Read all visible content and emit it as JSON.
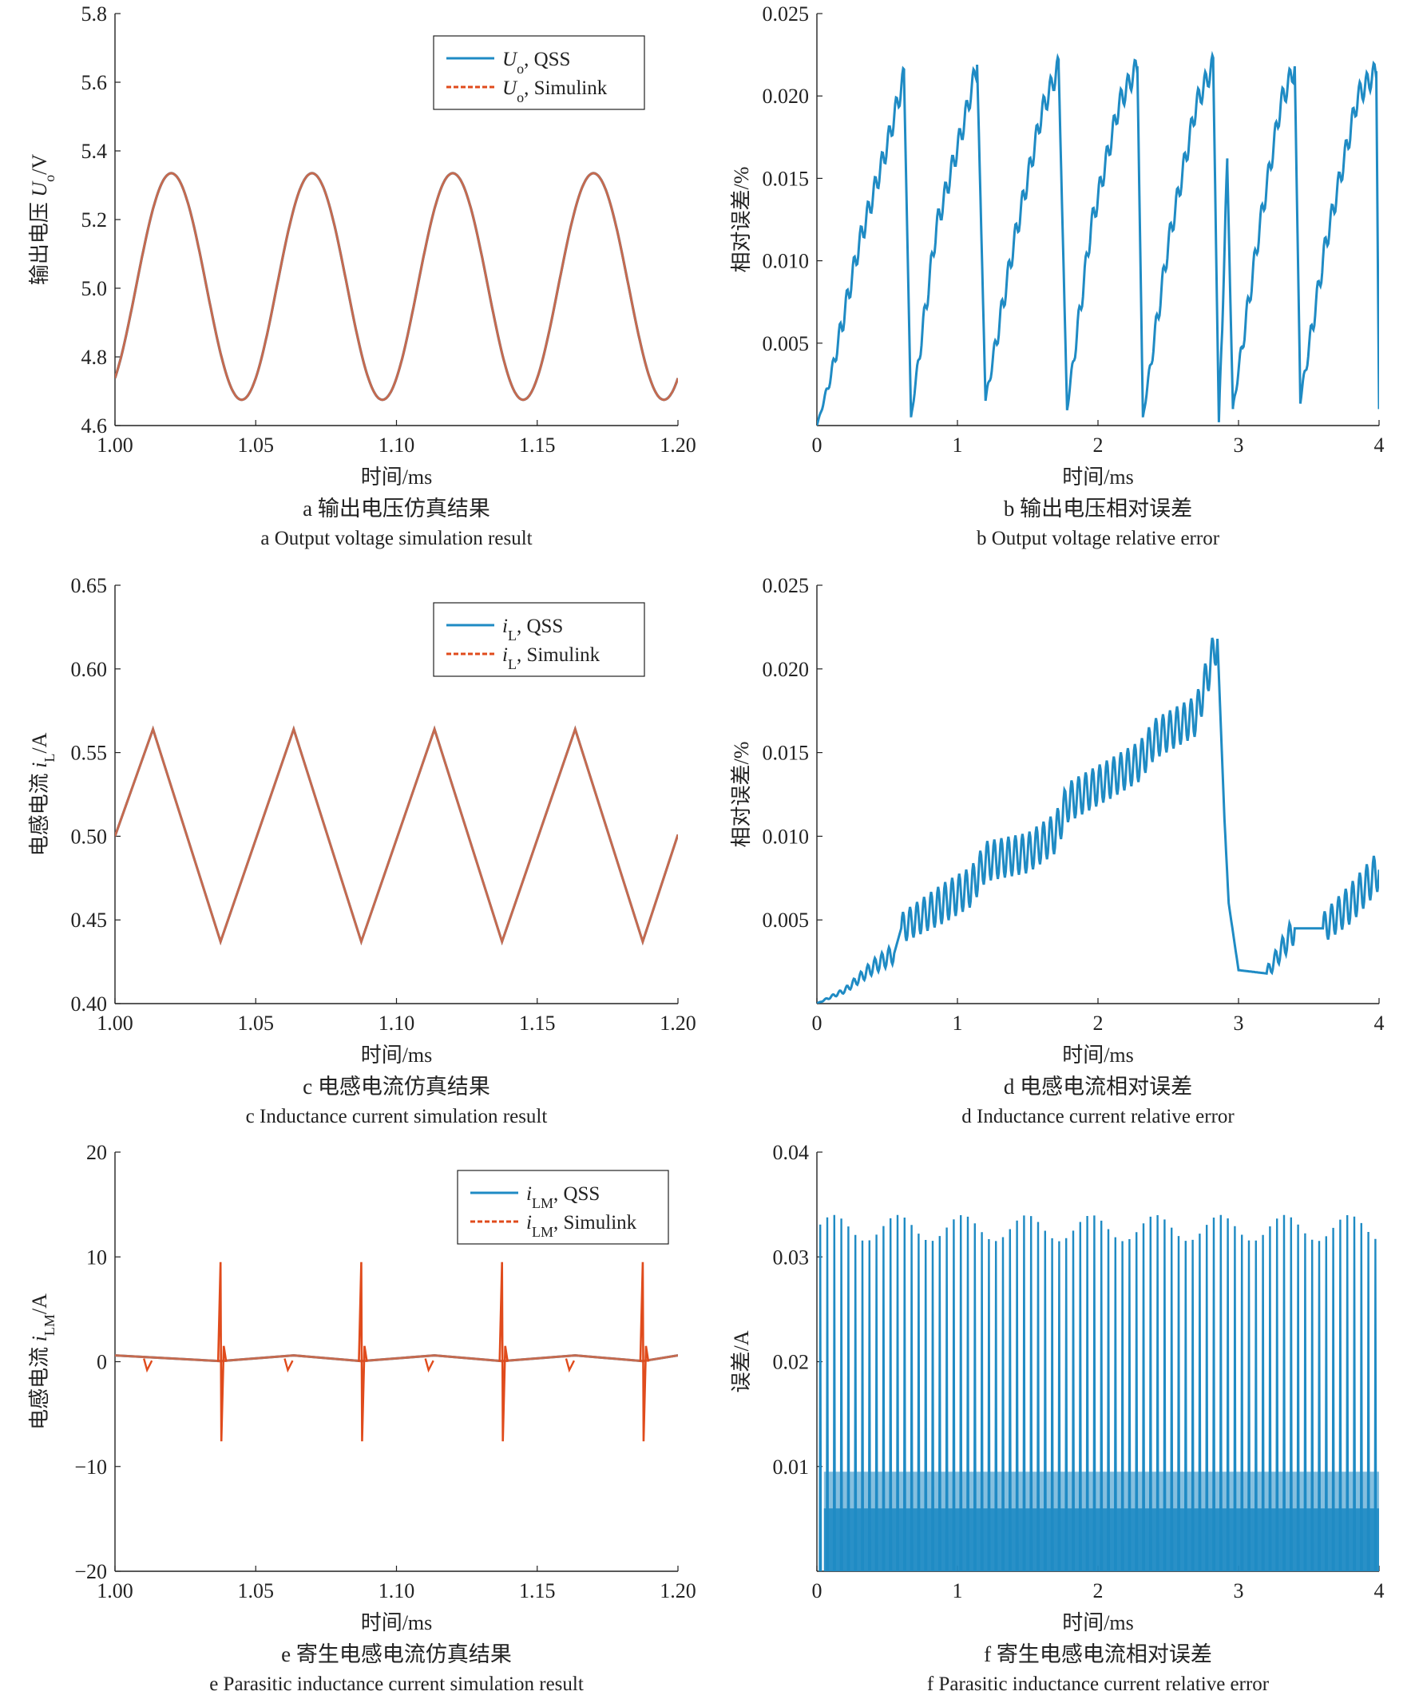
{
  "chart_data": [
    {
      "type": "line",
      "caption_cn": "a 输出电压仿真结果",
      "caption_en": "a Output voltage simulation result",
      "xlabel": "时间/ms",
      "ylabel": "输出电压 U_o/V",
      "xlim": [
        1.0,
        1.2
      ],
      "ylim": [
        4.6,
        5.8
      ],
      "xticks": [
        1.0,
        1.05,
        1.1,
        1.15,
        1.2
      ],
      "xtick_labels": [
        "1.00",
        "1.05",
        "1.10",
        "1.15",
        "1.20"
      ],
      "yticks": [
        4.6,
        4.8,
        5.0,
        5.2,
        5.4,
        5.6,
        5.8
      ],
      "ytick_labels": [
        "4.6",
        "4.8",
        "5.0",
        "5.2",
        "5.4",
        "5.6",
        "5.8"
      ],
      "legend_position": "top-right",
      "series": [
        {
          "name": "U_o, QSS",
          "style": "solid",
          "color": "#1f8bc4",
          "x": [
            1.0,
            1.01,
            1.02,
            1.03,
            1.045,
            1.055,
            1.07,
            1.08,
            1.095,
            1.105,
            1.12,
            1.13,
            1.145,
            1.155,
            1.17,
            1.18,
            1.195,
            1.2
          ],
          "y": [
            4.77,
            5.2,
            5.34,
            5.05,
            4.68,
            4.96,
            5.34,
            5.05,
            4.68,
            4.96,
            5.34,
            5.05,
            4.68,
            4.96,
            5.34,
            5.05,
            4.68,
            4.77
          ]
        },
        {
          "name": "U_o, Simulink",
          "style": "dashed",
          "color": "#e04b1c",
          "x": [
            1.0,
            1.01,
            1.02,
            1.03,
            1.045,
            1.055,
            1.07,
            1.08,
            1.095,
            1.105,
            1.12,
            1.13,
            1.145,
            1.155,
            1.17,
            1.18,
            1.195,
            1.2
          ],
          "y": [
            4.77,
            5.2,
            5.34,
            5.05,
            4.68,
            4.96,
            5.34,
            5.05,
            4.68,
            4.96,
            5.34,
            5.05,
            4.68,
            4.96,
            5.34,
            5.05,
            4.68,
            4.77
          ]
        }
      ]
    },
    {
      "type": "line",
      "caption_cn": "b 输出电压相对误差",
      "caption_en": "b Output voltage relative error",
      "xlabel": "时间/ms",
      "ylabel": "相对误差/%",
      "xlim": [
        0,
        4
      ],
      "ylim": [
        0,
        0.025
      ],
      "xticks": [
        0,
        1,
        2,
        3,
        4
      ],
      "xtick_labels": [
        "0",
        "1",
        "2",
        "3",
        "4"
      ],
      "yticks": [
        0.005,
        0.01,
        0.015,
        0.02,
        0.025
      ],
      "ytick_labels": [
        "0.005",
        "0.010",
        "0.015",
        "0.020",
        "0.025"
      ],
      "series": [
        {
          "color": "#1f8bc4",
          "style": "solid",
          "x": [
            0,
            0.1,
            0.3,
            0.5,
            0.62,
            0.67,
            0.85,
            1.05,
            1.14,
            1.2,
            1.4,
            1.6,
            1.72,
            1.78,
            1.95,
            2.15,
            2.28,
            2.32,
            2.5,
            2.7,
            2.82,
            2.86,
            2.92,
            2.96,
            3.15,
            3.3,
            3.4,
            3.44,
            3.62,
            3.85,
            3.98,
            4.0
          ],
          "y": [
            0,
            0.003,
            0.011,
            0.017,
            0.0212,
            0.0005,
            0.012,
            0.0185,
            0.0219,
            0.0015,
            0.011,
            0.019,
            0.0218,
            0.001,
            0.012,
            0.0195,
            0.0218,
            0.0005,
            0.011,
            0.0195,
            0.0219,
            0.0002,
            0.0158,
            0.001,
            0.012,
            0.0195,
            0.0218,
            0.0015,
            0.011,
            0.02,
            0.0215,
            0.001
          ]
        }
      ]
    },
    {
      "type": "line",
      "caption_cn": "c 电感电流仿真结果",
      "caption_en": "c Inductance current simulation result",
      "xlabel": "时间/ms",
      "ylabel": "电感电流 i_L/A",
      "xlim": [
        1.0,
        1.2
      ],
      "ylim": [
        0.4,
        0.65
      ],
      "xticks": [
        1.0,
        1.05,
        1.1,
        1.15,
        1.2
      ],
      "xtick_labels": [
        "1.00",
        "1.05",
        "1.10",
        "1.15",
        "1.20"
      ],
      "yticks": [
        0.4,
        0.45,
        0.5,
        0.55,
        0.6,
        0.65
      ],
      "ytick_labels": [
        "0.40",
        "0.45",
        "0.50",
        "0.55",
        "0.60",
        "0.65"
      ],
      "legend_position": "top-right",
      "series": [
        {
          "name": "i_L, QSS",
          "style": "solid",
          "color": "#1f8bc4",
          "x": [
            1.0,
            1.0135,
            1.0375,
            1.0635,
            1.0875,
            1.1135,
            1.1375,
            1.1635,
            1.1875,
            1.2
          ],
          "y": [
            0.5,
            0.564,
            0.437,
            0.564,
            0.437,
            0.564,
            0.437,
            0.564,
            0.437,
            0.501
          ]
        },
        {
          "name": "i_L, Simulink",
          "style": "dashed",
          "color": "#e04b1c",
          "x": [
            1.0,
            1.0135,
            1.0375,
            1.0635,
            1.0875,
            1.1135,
            1.1375,
            1.1635,
            1.1875,
            1.2
          ],
          "y": [
            0.5,
            0.564,
            0.437,
            0.564,
            0.437,
            0.564,
            0.437,
            0.564,
            0.437,
            0.501
          ]
        }
      ]
    },
    {
      "type": "line",
      "caption_cn": "d 电感电流相对误差",
      "caption_en": "d Inductance current relative error",
      "xlabel": "时间/ms",
      "ylabel": "相对误差/%",
      "xlim": [
        0,
        4
      ],
      "ylim": [
        0,
        0.025
      ],
      "xticks": [
        0,
        1,
        2,
        3,
        4
      ],
      "xtick_labels": [
        "0",
        "1",
        "2",
        "3",
        "4"
      ],
      "yticks": [
        0.005,
        0.01,
        0.015,
        0.02,
        0.025
      ],
      "ytick_labels": [
        "0.005",
        "0.010",
        "0.015",
        "0.020",
        "0.025"
      ],
      "series": [
        {
          "color": "#1f8bc4",
          "style": "solid",
          "x": [
            0,
            0.2,
            0.4,
            0.55,
            0.6,
            0.9,
            1.1,
            1.2,
            1.5,
            1.7,
            1.78,
            2.1,
            2.3,
            2.4,
            2.7,
            2.85,
            2.9,
            2.93,
            3.0,
            3.2,
            3.4,
            3.6,
            3.8,
            4.0
          ],
          "y": [
            0,
            0.0008,
            0.0022,
            0.003,
            0.0045,
            0.006,
            0.007,
            0.0085,
            0.009,
            0.0102,
            0.012,
            0.0135,
            0.0145,
            0.0158,
            0.0172,
            0.0218,
            0.011,
            0.006,
            0.002,
            0.0018,
            0.0045,
            0.0045,
            0.006,
            0.008
          ]
        }
      ]
    },
    {
      "type": "line",
      "caption_cn": "e 寄生电感电流仿真结果",
      "caption_en": "e Parasitic inductance current simulation result",
      "xlabel": "时间/ms",
      "ylabel": "电感电流 i_LM/A",
      "xlim": [
        1.0,
        1.2
      ],
      "ylim": [
        -20,
        20
      ],
      "xticks": [
        1.0,
        1.05,
        1.1,
        1.15,
        1.2
      ],
      "xtick_labels": [
        "1.00",
        "1.05",
        "1.10",
        "1.15",
        "1.20"
      ],
      "yticks": [
        -20,
        -10,
        0,
        10,
        20
      ],
      "ytick_labels": [
        "−20",
        "−10",
        "0",
        "10",
        "20"
      ],
      "legend_position": "top-right",
      "spike_times": [
        1.0375,
        1.0875,
        1.1375,
        1.1875
      ],
      "spike_max": 9.5,
      "spike_min": -7.6,
      "series": [
        {
          "name": "i_LM, QSS",
          "style": "solid",
          "color": "#1f8bc4",
          "x": [
            1.0,
            1.0375,
            1.0635,
            1.0875,
            1.1135,
            1.1375,
            1.1635,
            1.1875,
            1.2
          ],
          "y": [
            0.6,
            0.05,
            0.6,
            0.05,
            0.6,
            0.05,
            0.6,
            0.05,
            0.6
          ]
        },
        {
          "name": "i_LM, Simulink",
          "style": "dashed",
          "color": "#e04b1c",
          "x": [
            1.0,
            1.0375,
            1.0635,
            1.0875,
            1.1135,
            1.1375,
            1.1635,
            1.1875,
            1.2
          ],
          "y": [
            0.6,
            0.05,
            0.6,
            0.05,
            0.6,
            0.05,
            0.6,
            0.05,
            0.6
          ]
        }
      ]
    },
    {
      "type": "line",
      "caption_cn": "f 寄生电感电流相对误差",
      "caption_en": "f Parasitic inductance current relative error",
      "xlabel": "时间/ms",
      "ylabel": "误差/A",
      "xlim": [
        0,
        4
      ],
      "ylim": [
        0,
        0.04
      ],
      "xticks": [
        0,
        1,
        2,
        3,
        4
      ],
      "xtick_labels": [
        "0",
        "1",
        "2",
        "3",
        "4"
      ],
      "yticks": [
        0.01,
        0.02,
        0.03,
        0.04
      ],
      "ytick_labels": [
        "0.01",
        "0.02",
        "0.03",
        "0.04"
      ],
      "spike_period": 0.05,
      "spike_start": 0.02,
      "spike_peak_range": [
        0.0315,
        0.034
      ],
      "band_top": 0.0095,
      "inner_band_top": 0.006,
      "series": [
        {
          "color": "#1f8bc4",
          "style": "solid"
        }
      ]
    }
  ]
}
